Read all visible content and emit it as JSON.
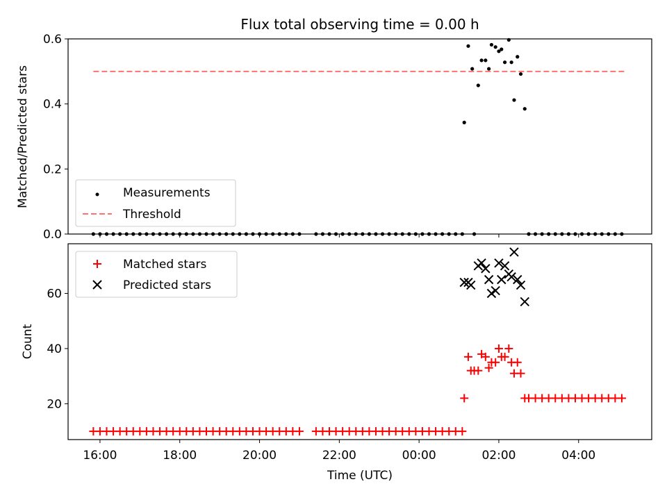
{
  "chart_data": [
    {
      "type": "scatter",
      "title": "Flux total observing time = 0.00 h",
      "xlabel": "",
      "ylabel": "Matched/Predicted stars",
      "xlim": [
        "15:12",
        "05:50"
      ],
      "ylim": [
        0.0,
        0.6
      ],
      "yticks": [
        "0.0",
        "0.2",
        "0.4",
        "0.6"
      ],
      "legend_position": "lower-left",
      "series": [
        {
          "name": "Measurements",
          "color": "#000000",
          "marker": "dot",
          "points": [
            [
              "15:50",
              0.0
            ],
            [
              "16:00",
              0.0
            ],
            [
              "16:10",
              0.0
            ],
            [
              "16:20",
              0.0
            ],
            [
              "16:30",
              0.0
            ],
            [
              "16:40",
              0.0
            ],
            [
              "16:50",
              0.0
            ],
            [
              "17:00",
              0.0
            ],
            [
              "17:10",
              0.0
            ],
            [
              "17:20",
              0.0
            ],
            [
              "17:30",
              0.0
            ],
            [
              "17:40",
              0.0
            ],
            [
              "17:50",
              0.0
            ],
            [
              "18:00",
              0.0
            ],
            [
              "18:10",
              0.0
            ],
            [
              "18:20",
              0.0
            ],
            [
              "18:30",
              0.0
            ],
            [
              "18:40",
              0.0
            ],
            [
              "18:50",
              0.0
            ],
            [
              "19:00",
              0.0
            ],
            [
              "19:10",
              0.0
            ],
            [
              "19:20",
              0.0
            ],
            [
              "19:30",
              0.0
            ],
            [
              "19:40",
              0.0
            ],
            [
              "19:50",
              0.0
            ],
            [
              "20:00",
              0.0
            ],
            [
              "20:10",
              0.0
            ],
            [
              "20:20",
              0.0
            ],
            [
              "20:30",
              0.0
            ],
            [
              "20:40",
              0.0
            ],
            [
              "20:50",
              0.0
            ],
            [
              "21:00",
              0.0
            ],
            [
              "21:25",
              0.0
            ],
            [
              "21:35",
              0.0
            ],
            [
              "21:45",
              0.0
            ],
            [
              "21:55",
              0.0
            ],
            [
              "22:05",
              0.0
            ],
            [
              "22:15",
              0.0
            ],
            [
              "22:25",
              0.0
            ],
            [
              "22:35",
              0.0
            ],
            [
              "22:45",
              0.0
            ],
            [
              "22:55",
              0.0
            ],
            [
              "23:05",
              0.0
            ],
            [
              "23:15",
              0.0
            ],
            [
              "23:25",
              0.0
            ],
            [
              "23:35",
              0.0
            ],
            [
              "23:45",
              0.0
            ],
            [
              "23:55",
              0.0
            ],
            [
              "00:05",
              0.0
            ],
            [
              "00:15",
              0.0
            ],
            [
              "00:25",
              0.0
            ],
            [
              "00:35",
              0.0
            ],
            [
              "00:45",
              0.0
            ],
            [
              "00:55",
              0.0
            ],
            [
              "01:05",
              0.0
            ],
            [
              "01:08",
              0.343
            ],
            [
              "01:14",
              0.578
            ],
            [
              "01:20",
              0.508
            ],
            [
              "01:23",
              0.0
            ],
            [
              "01:29",
              0.457
            ],
            [
              "01:34",
              0.534
            ],
            [
              "01:40",
              0.534
            ],
            [
              "01:45",
              0.508
            ],
            [
              "01:49",
              0.582
            ],
            [
              "01:55",
              0.575
            ],
            [
              "02:00",
              0.562
            ],
            [
              "02:04",
              0.568
            ],
            [
              "02:09",
              0.528
            ],
            [
              "02:15",
              0.597
            ],
            [
              "02:19",
              0.528
            ],
            [
              "02:23",
              0.412
            ],
            [
              "02:28",
              0.545
            ],
            [
              "02:33",
              0.492
            ],
            [
              "02:39",
              0.385
            ],
            [
              "02:45",
              0.0
            ],
            [
              "02:55",
              0.0
            ],
            [
              "03:05",
              0.0
            ],
            [
              "03:15",
              0.0
            ],
            [
              "03:25",
              0.0
            ],
            [
              "03:35",
              0.0
            ],
            [
              "03:45",
              0.0
            ],
            [
              "03:55",
              0.0
            ],
            [
              "04:05",
              0.0
            ],
            [
              "04:15",
              0.0
            ],
            [
              "04:25",
              0.0
            ],
            [
              "04:35",
              0.0
            ],
            [
              "04:45",
              0.0
            ],
            [
              "04:55",
              0.0
            ],
            [
              "05:05",
              0.0
            ]
          ]
        },
        {
          "name": "Threshold",
          "color": "#ff7070",
          "style": "dashed",
          "points": [
            [
              "15:50",
              0.5
            ],
            [
              "05:10",
              0.5
            ]
          ]
        }
      ]
    },
    {
      "type": "scatter",
      "title": "",
      "xlabel": "Time (UTC)",
      "ylabel": "Count",
      "xlim": [
        "15:12",
        "05:50"
      ],
      "ylim": [
        7,
        78
      ],
      "yticks": [
        "20",
        "40",
        "60"
      ],
      "xticks": [
        "16:00",
        "18:00",
        "20:00",
        "22:00",
        "00:00",
        "02:00",
        "04:00"
      ],
      "legend_position": "upper-left",
      "series": [
        {
          "name": "Matched stars",
          "color": "#ff0000",
          "marker": "plus",
          "points": [
            [
              "15:50",
              10
            ],
            [
              "16:00",
              10
            ],
            [
              "16:10",
              10
            ],
            [
              "16:20",
              10
            ],
            [
              "16:30",
              10
            ],
            [
              "16:40",
              10
            ],
            [
              "16:50",
              10
            ],
            [
              "17:00",
              10
            ],
            [
              "17:10",
              10
            ],
            [
              "17:20",
              10
            ],
            [
              "17:30",
              10
            ],
            [
              "17:40",
              10
            ],
            [
              "17:50",
              10
            ],
            [
              "18:00",
              10
            ],
            [
              "18:10",
              10
            ],
            [
              "18:20",
              10
            ],
            [
              "18:30",
              10
            ],
            [
              "18:40",
              10
            ],
            [
              "18:50",
              10
            ],
            [
              "19:00",
              10
            ],
            [
              "19:10",
              10
            ],
            [
              "19:20",
              10
            ],
            [
              "19:30",
              10
            ],
            [
              "19:40",
              10
            ],
            [
              "19:50",
              10
            ],
            [
              "20:00",
              10
            ],
            [
              "20:10",
              10
            ],
            [
              "20:20",
              10
            ],
            [
              "20:30",
              10
            ],
            [
              "20:40",
              10
            ],
            [
              "20:50",
              10
            ],
            [
              "21:00",
              10
            ],
            [
              "21:25",
              10
            ],
            [
              "21:35",
              10
            ],
            [
              "21:45",
              10
            ],
            [
              "21:55",
              10
            ],
            [
              "22:05",
              10
            ],
            [
              "22:15",
              10
            ],
            [
              "22:25",
              10
            ],
            [
              "22:35",
              10
            ],
            [
              "22:45",
              10
            ],
            [
              "22:55",
              10
            ],
            [
              "23:05",
              10
            ],
            [
              "23:15",
              10
            ],
            [
              "23:25",
              10
            ],
            [
              "23:35",
              10
            ],
            [
              "23:45",
              10
            ],
            [
              "23:55",
              10
            ],
            [
              "00:05",
              10
            ],
            [
              "00:15",
              10
            ],
            [
              "00:25",
              10
            ],
            [
              "00:35",
              10
            ],
            [
              "00:45",
              10
            ],
            [
              "00:55",
              10
            ],
            [
              "01:05",
              10
            ],
            [
              "01:08",
              22
            ],
            [
              "01:14",
              37
            ],
            [
              "01:18",
              32
            ],
            [
              "01:23",
              32
            ],
            [
              "01:29",
              32
            ],
            [
              "01:34",
              38
            ],
            [
              "01:40",
              37
            ],
            [
              "01:45",
              33
            ],
            [
              "01:49",
              35
            ],
            [
              "01:55",
              35
            ],
            [
              "02:00",
              40
            ],
            [
              "02:04",
              37
            ],
            [
              "02:09",
              37
            ],
            [
              "02:15",
              40
            ],
            [
              "02:19",
              35
            ],
            [
              "02:23",
              31
            ],
            [
              "02:28",
              35
            ],
            [
              "02:33",
              31
            ],
            [
              "02:39",
              22
            ],
            [
              "02:45",
              22
            ],
            [
              "02:55",
              22
            ],
            [
              "03:05",
              22
            ],
            [
              "03:15",
              22
            ],
            [
              "03:25",
              22
            ],
            [
              "03:35",
              22
            ],
            [
              "03:45",
              22
            ],
            [
              "03:55",
              22
            ],
            [
              "04:05",
              22
            ],
            [
              "04:15",
              22
            ],
            [
              "04:25",
              22
            ],
            [
              "04:35",
              22
            ],
            [
              "04:45",
              22
            ],
            [
              "04:55",
              22
            ],
            [
              "05:05",
              22
            ]
          ]
        },
        {
          "name": "Predicted stars",
          "color": "#000000",
          "marker": "x",
          "points": [
            [
              "01:08",
              64
            ],
            [
              "01:14",
              64
            ],
            [
              "01:18",
              63
            ],
            [
              "01:29",
              70
            ],
            [
              "01:34",
              71
            ],
            [
              "01:40",
              69
            ],
            [
              "01:45",
              65
            ],
            [
              "01:49",
              60
            ],
            [
              "01:55",
              61
            ],
            [
              "02:00",
              71
            ],
            [
              "02:04",
              65
            ],
            [
              "02:09",
              70
            ],
            [
              "02:15",
              67
            ],
            [
              "02:19",
              66
            ],
            [
              "02:23",
              75
            ],
            [
              "02:28",
              65
            ],
            [
              "02:33",
              63
            ],
            [
              "02:39",
              57
            ]
          ]
        }
      ]
    }
  ]
}
